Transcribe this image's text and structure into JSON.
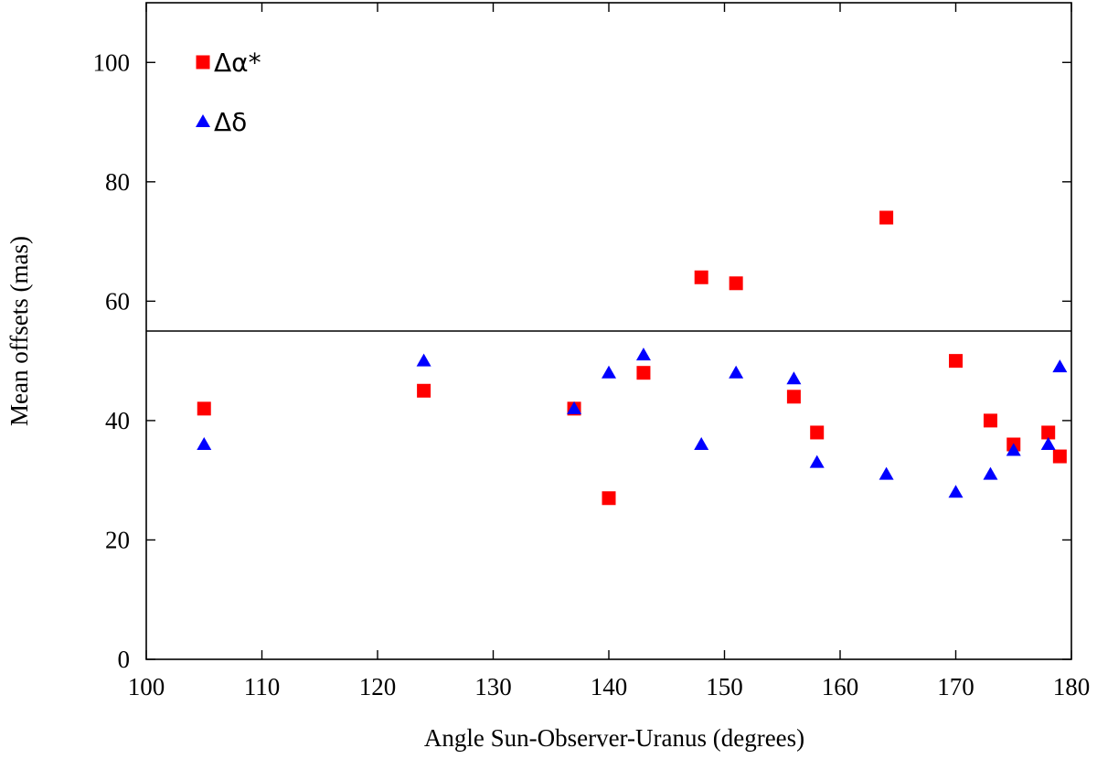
{
  "chart_data": {
    "type": "scatter",
    "title": "",
    "xlabel": "Angle Sun-Observer-Uranus (degrees)",
    "ylabel": "Mean offsets (mas)",
    "xlim": [
      100,
      180
    ],
    "ylim": [
      0,
      110
    ],
    "xticks": [
      100,
      110,
      120,
      130,
      140,
      150,
      160,
      170,
      180
    ],
    "yticks": [
      0,
      20,
      40,
      60,
      80,
      100
    ],
    "grid": false,
    "legend_position": "top-left",
    "reference_line": {
      "y": 55
    },
    "series": [
      {
        "name": "Δα*",
        "marker": "square",
        "color": "#ff0000",
        "points": [
          {
            "x": 105,
            "y": 42
          },
          {
            "x": 124,
            "y": 45
          },
          {
            "x": 137,
            "y": 42
          },
          {
            "x": 140,
            "y": 27
          },
          {
            "x": 143,
            "y": 48
          },
          {
            "x": 148,
            "y": 64
          },
          {
            "x": 151,
            "y": 63
          },
          {
            "x": 156,
            "y": 44
          },
          {
            "x": 158,
            "y": 38
          },
          {
            "x": 164,
            "y": 74
          },
          {
            "x": 170,
            "y": 50
          },
          {
            "x": 173,
            "y": 40
          },
          {
            "x": 175,
            "y": 36
          },
          {
            "x": 178,
            "y": 38
          },
          {
            "x": 179,
            "y": 34
          }
        ]
      },
      {
        "name": "Δδ",
        "marker": "triangle",
        "color": "#0000ff",
        "points": [
          {
            "x": 105,
            "y": 36
          },
          {
            "x": 124,
            "y": 50
          },
          {
            "x": 137,
            "y": 42
          },
          {
            "x": 140,
            "y": 48
          },
          {
            "x": 143,
            "y": 51
          },
          {
            "x": 148,
            "y": 36
          },
          {
            "x": 151,
            "y": 48
          },
          {
            "x": 156,
            "y": 47
          },
          {
            "x": 158,
            "y": 33
          },
          {
            "x": 164,
            "y": 31
          },
          {
            "x": 170,
            "y": 28
          },
          {
            "x": 173,
            "y": 31
          },
          {
            "x": 175,
            "y": 35
          },
          {
            "x": 178,
            "y": 36
          },
          {
            "x": 179,
            "y": 49
          }
        ]
      }
    ]
  }
}
